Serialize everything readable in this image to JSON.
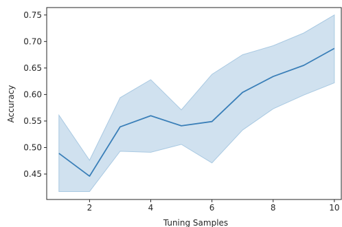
{
  "chart_data": {
    "type": "line",
    "title": "",
    "xlabel": "Tuning Samples",
    "ylabel": "Accuracy",
    "x": [
      1,
      2,
      3,
      4,
      5,
      6,
      7,
      8,
      9,
      10
    ],
    "series": [
      {
        "values": [
          0.489,
          0.446,
          0.539,
          0.56,
          0.541,
          0.549,
          0.604,
          0.634,
          0.655,
          0.687
        ],
        "band_lower": [
          0.417,
          0.417,
          0.493,
          0.491,
          0.506,
          0.471,
          0.533,
          0.573,
          0.599,
          0.622
        ],
        "band_upper": [
          0.561,
          0.476,
          0.594,
          0.628,
          0.571,
          0.638,
          0.675,
          0.692,
          0.716,
          0.75
        ],
        "color": "#3a7fb8",
        "band_color": "#a9c9e2"
      }
    ],
    "xlim": [
      0.6,
      10.25
    ],
    "ylim": [
      0.402,
      0.764
    ],
    "xticks": [
      "2",
      "4",
      "6",
      "8",
      "10"
    ],
    "xtick_values": [
      2,
      4,
      6,
      8,
      10
    ],
    "yticks": [
      "0.45",
      "0.50",
      "0.55",
      "0.60",
      "0.65",
      "0.70",
      "0.75"
    ],
    "ytick_values": [
      0.45,
      0.5,
      0.55,
      0.6,
      0.65,
      0.7,
      0.75
    ],
    "grid": false,
    "legend": "none"
  }
}
